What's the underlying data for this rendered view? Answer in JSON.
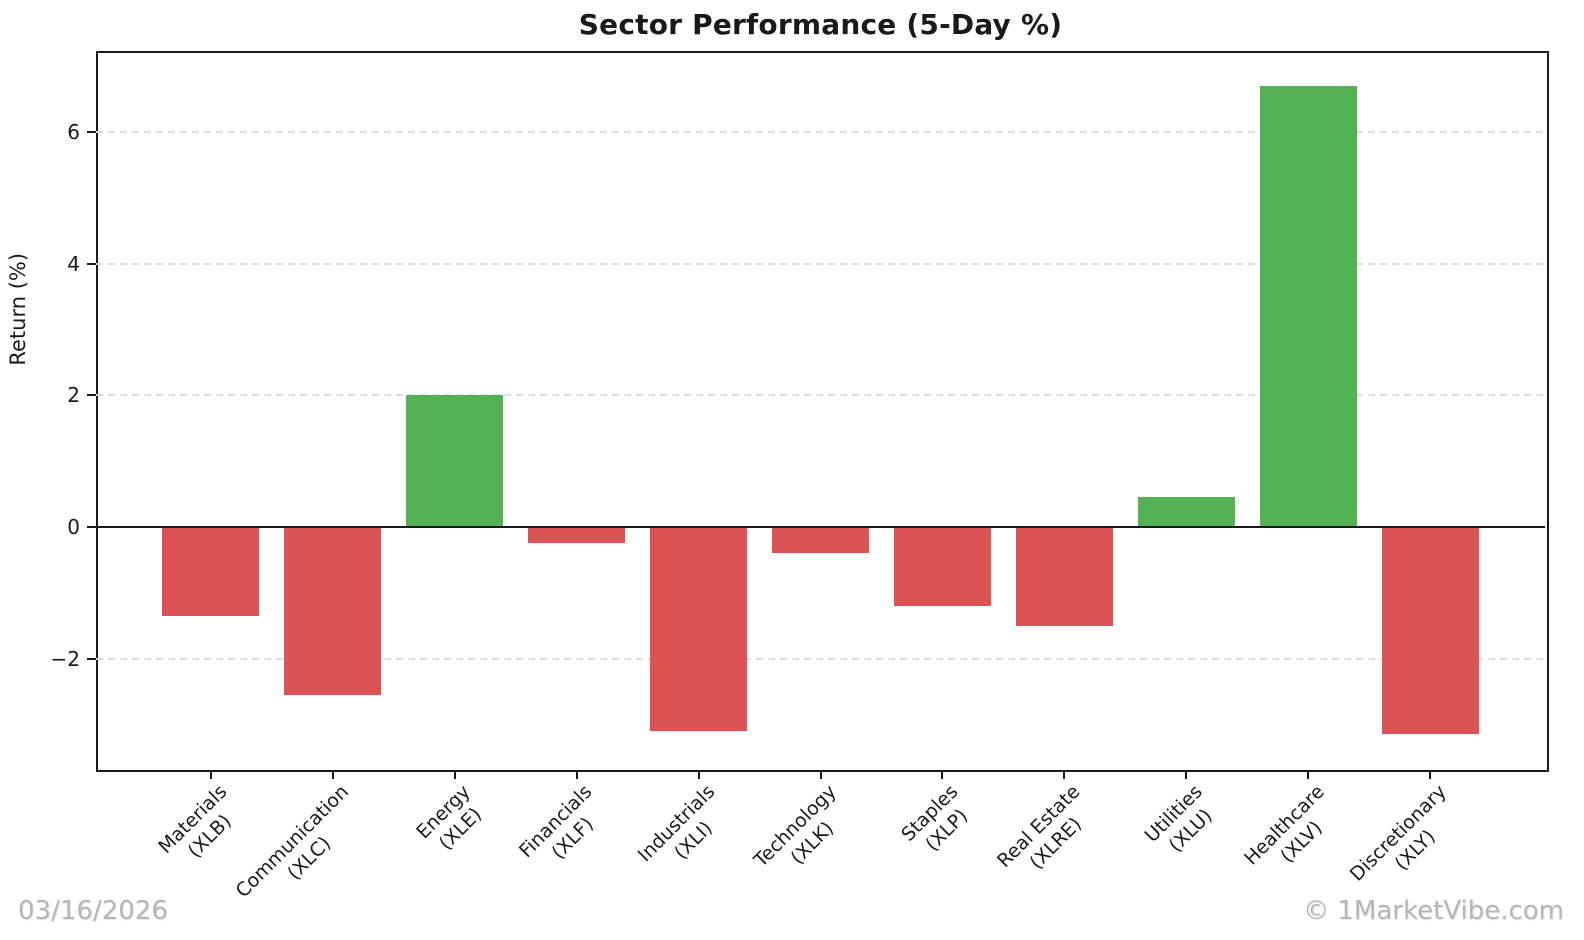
{
  "figure": {
    "title": "Sector Performance (5-Day %)",
    "footer_date": "03/16/2026",
    "footer_credit": "© 1MarketVibe.com"
  },
  "chart_data": {
    "type": "bar",
    "title": "Sector Performance (5-Day %)",
    "xlabel": "",
    "ylabel": "Return (%)",
    "categories": [
      {
        "sector": "Materials",
        "ticker": "(XLB)"
      },
      {
        "sector": "Communication",
        "ticker": "(XLC)"
      },
      {
        "sector": "Energy",
        "ticker": "(XLE)"
      },
      {
        "sector": "Financials",
        "ticker": "(XLF)"
      },
      {
        "sector": "Industrials",
        "ticker": "(XLI)"
      },
      {
        "sector": "Technology",
        "ticker": "(XLK)"
      },
      {
        "sector": "Staples",
        "ticker": "(XLP)"
      },
      {
        "sector": "Real Estate",
        "ticker": "(XLRE)"
      },
      {
        "sector": "Utilities",
        "ticker": "(XLU)"
      },
      {
        "sector": "Healthcare",
        "ticker": "(XLV)"
      },
      {
        "sector": "Discretionary",
        "ticker": "(XLY)"
      }
    ],
    "values": [
      -1.35,
      -2.55,
      2.0,
      -0.25,
      -3.1,
      -0.4,
      -1.2,
      -1.5,
      0.45,
      6.7,
      -3.15
    ],
    "colors": {
      "positive": "#54b254",
      "negative": "#dc5356"
    },
    "yticks": [
      -2,
      0,
      2,
      4,
      6
    ],
    "ylim": [
      -3.66,
      7.23
    ],
    "xlim": [
      -0.94,
      10.94
    ],
    "bar_width": 0.8,
    "grid": "horizontal-dashed",
    "gridline_color": "#dedede",
    "zero_line": true,
    "legend": "none"
  }
}
